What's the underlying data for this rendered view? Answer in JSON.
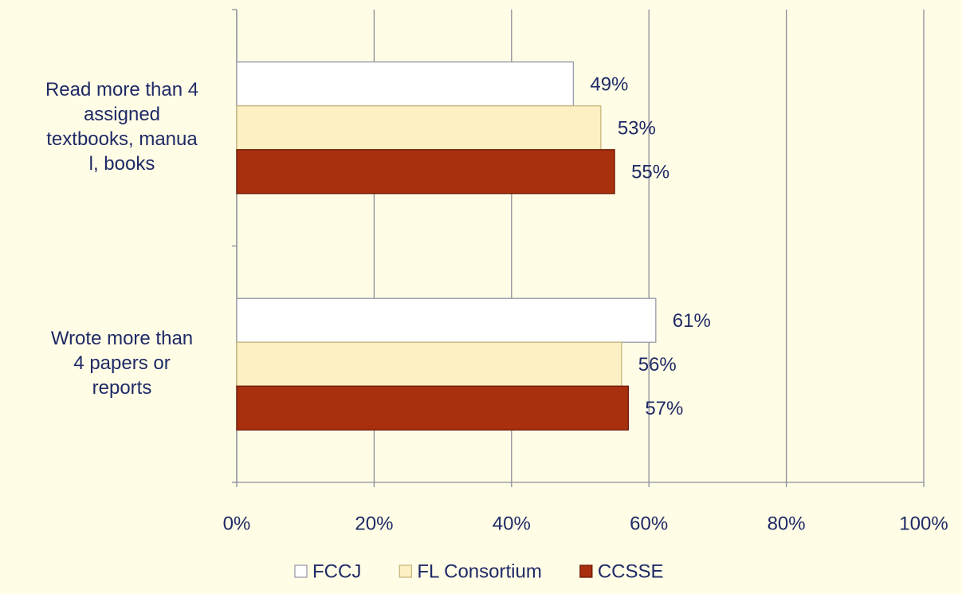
{
  "chart_data": {
    "type": "bar",
    "orientation": "horizontal",
    "categories": [
      "Read more than 4\nassigned\ntextbooks, manua\nl, books",
      "Wrote more than\n4 papers or\nreports"
    ],
    "series": [
      {
        "name": "FCCJ",
        "color": "#ffffff",
        "values": [
          49,
          61
        ],
        "value_labels": [
          "49%",
          "61%"
        ]
      },
      {
        "name": "FL Consortium",
        "color": "#fdf1c4",
        "values": [
          53,
          56
        ],
        "value_labels": [
          "53%",
          "56%"
        ]
      },
      {
        "name": "CCSSE",
        "color": "#a8300f",
        "values": [
          55,
          57
        ],
        "value_labels": [
          "55%",
          "57%"
        ]
      }
    ],
    "xlim": [
      0,
      100
    ],
    "xticks": [
      {
        "value": 0,
        "label": "0%"
      },
      {
        "value": 20,
        "label": "20%"
      },
      {
        "value": 40,
        "label": "40%"
      },
      {
        "value": 60,
        "label": "60%"
      },
      {
        "value": 80,
        "label": "80%"
      },
      {
        "value": 100,
        "label": "100%"
      }
    ],
    "grid": true,
    "legend": "bottom"
  }
}
